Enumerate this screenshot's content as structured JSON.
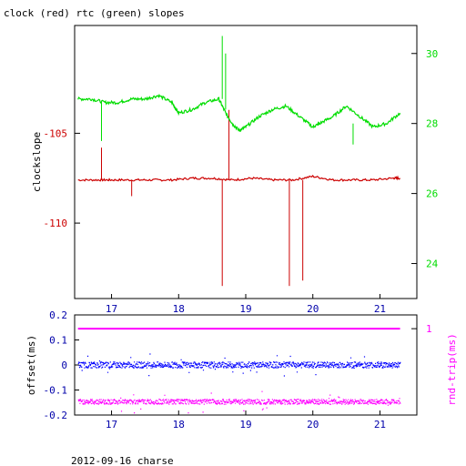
{
  "title": "clock (red) rtc (green) slopes",
  "footer": "2012-09-16 charse",
  "colors": {
    "clock": "#cc0000",
    "rtc": "#00dd00",
    "offset": "#0000ff",
    "roundtrip": "#ff00ff",
    "axis": "#000000"
  },
  "chart_data": [
    {
      "type": "line",
      "title": "clock (red) rtc (green) slopes",
      "xlim": [
        16.45,
        21.55
      ],
      "x_ticks": [
        17,
        18,
        19,
        20,
        21
      ],
      "x_tick_labels": [
        "17",
        "18",
        "19",
        "20",
        "21"
      ],
      "ylabel_left": "clockslope",
      "ylim_left": [
        -114.2,
        -99.0
      ],
      "y_ticks_left": [
        -105,
        -110
      ],
      "y_tick_labels_left": [
        "-105",
        "-110"
      ],
      "ylim_right": [
        23.0,
        30.8
      ],
      "y_ticks_right": [
        24,
        26,
        28,
        30
      ],
      "y_tick_labels_right": [
        "24",
        "26",
        "28",
        "30"
      ],
      "series": [
        {
          "key": "clock",
          "axis": "left",
          "x": [
            16.5,
            16.8,
            17.0,
            17.3,
            17.6,
            17.9,
            18.2,
            18.5,
            18.8,
            19.1,
            19.4,
            19.7,
            20.0,
            20.3,
            20.6,
            20.9,
            21.2,
            21.3
          ],
          "y": [
            -107.6,
            -107.6,
            -107.6,
            -107.6,
            -107.6,
            -107.6,
            -107.5,
            -107.5,
            -107.6,
            -107.5,
            -107.6,
            -107.6,
            -107.4,
            -107.6,
            -107.6,
            -107.6,
            -107.5,
            -107.5
          ],
          "spikes": [
            {
              "x": 16.85,
              "y0": -107.6,
              "y1": -105.8
            },
            {
              "x": 17.3,
              "y0": -107.6,
              "y1": -108.5
            },
            {
              "x": 18.65,
              "y0": -107.6,
              "y1": -113.5
            },
            {
              "x": 18.75,
              "y0": -107.6,
              "y1": -103.7
            },
            {
              "x": 19.65,
              "y0": -107.6,
              "y1": -113.5
            },
            {
              "x": 19.85,
              "y0": -107.6,
              "y1": -113.2
            }
          ]
        },
        {
          "key": "rtc",
          "axis": "right",
          "x": [
            16.5,
            16.7,
            16.9,
            17.1,
            17.3,
            17.5,
            17.7,
            17.9,
            18.0,
            18.2,
            18.4,
            18.6,
            18.7,
            18.8,
            18.9,
            19.0,
            19.2,
            19.4,
            19.6,
            19.8,
            20.0,
            20.1,
            20.3,
            20.5,
            20.7,
            20.9,
            21.1,
            21.3
          ],
          "y": [
            28.7,
            28.7,
            28.6,
            28.6,
            28.7,
            28.7,
            28.8,
            28.6,
            28.3,
            28.4,
            28.6,
            28.7,
            28.3,
            28.0,
            27.8,
            27.9,
            28.2,
            28.4,
            28.5,
            28.2,
            27.9,
            28.0,
            28.2,
            28.5,
            28.2,
            27.9,
            28.0,
            28.3
          ],
          "spikes": [
            {
              "x": 16.85,
              "y0": 28.6,
              "y1": 27.5
            },
            {
              "x": 18.65,
              "y0": 28.7,
              "y1": 30.5
            },
            {
              "x": 18.7,
              "y0": 28.4,
              "y1": 30.0
            },
            {
              "x": 20.6,
              "y0": 28.0,
              "y1": 27.4
            }
          ]
        }
      ]
    },
    {
      "type": "scatter",
      "xlim": [
        16.45,
        21.55
      ],
      "x_ticks": [
        17,
        18,
        19,
        20,
        21
      ],
      "x_tick_labels": [
        "17",
        "18",
        "19",
        "20",
        "21"
      ],
      "ylabel_left": "offset(ms)",
      "ylim_left": [
        -0.2,
        0.2
      ],
      "y_ticks_left": [
        0.2,
        0.1,
        0,
        -0.1,
        -0.2
      ],
      "y_tick_labels_left": [
        "0.2",
        "0.1",
        "0",
        "-0.1",
        "-0.2"
      ],
      "ylabel_right": "rnd-trip(ms)",
      "y_ticks_right": [
        1
      ],
      "y_tick_labels_right": [
        "1"
      ],
      "series": [
        {
          "key": "offset",
          "axis": "left",
          "x_range": [
            16.5,
            21.3
          ],
          "center": 0.0,
          "spread": 0.012
        },
        {
          "key": "roundtrip_high",
          "axis": "left",
          "x_range": [
            16.5,
            21.3
          ],
          "center": 0.145,
          "spread": 0.0
        },
        {
          "key": "roundtrip_low",
          "axis": "left",
          "x_range": [
            16.5,
            21.3
          ],
          "center": -0.147,
          "spread": 0.01
        }
      ]
    }
  ]
}
